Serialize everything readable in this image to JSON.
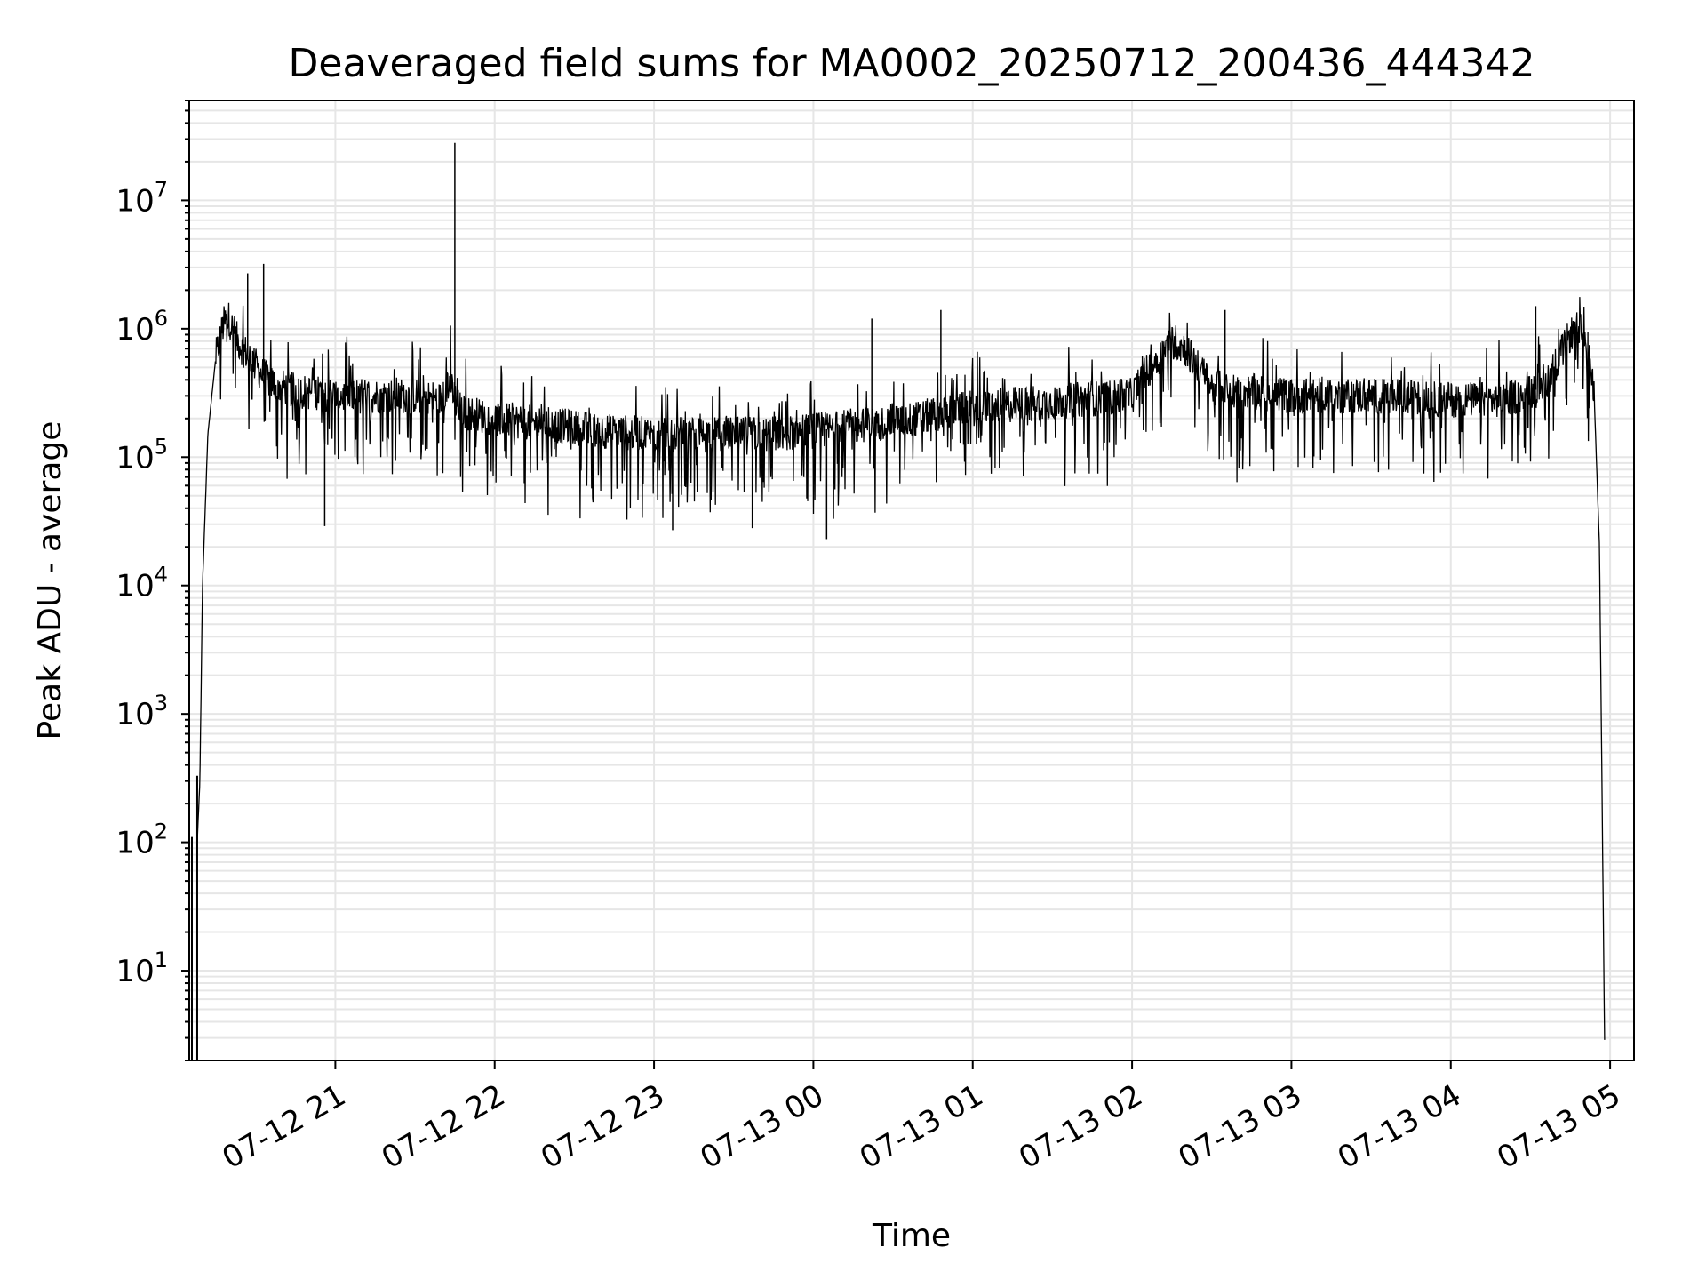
{
  "chart_data": {
    "type": "line",
    "title": "Deaveraged field sums for MA0002_20250712_200436_444342",
    "xlabel": "Time",
    "ylabel": "Peak ADU - average",
    "yscale": "log",
    "grid": true,
    "x_ticks": [
      "07-12 21",
      "07-12 22",
      "07-12 23",
      "07-13 00",
      "07-13 01",
      "07-13 02",
      "07-13 03",
      "07-13 04",
      "07-13 05"
    ],
    "y_ticks": [
      {
        "value": 10,
        "base": "10",
        "exp": "1"
      },
      {
        "value": 100,
        "base": "10",
        "exp": "2"
      },
      {
        "value": 1000,
        "base": "10",
        "exp": "3"
      },
      {
        "value": 10000,
        "base": "10",
        "exp": "4"
      },
      {
        "value": 100000,
        "base": "10",
        "exp": "5"
      },
      {
        "value": 1000000,
        "base": "10",
        "exp": "6"
      },
      {
        "value": 10000000,
        "base": "10",
        "exp": "7"
      }
    ],
    "xlim": [
      "2025-07-12 20:05",
      "2025-07-13 05:09"
    ],
    "ylim": [
      2,
      60000000
    ],
    "line_color": "#000000",
    "series": [
      {
        "x": [
          "2025-07-12 20:08",
          "2025-07-12 20:09",
          "2025-07-12 20:10",
          "2025-07-12 20:12",
          "2025-07-12 20:15",
          "2025-07-12 20:18",
          "2025-07-12 20:20",
          "2025-07-12 20:22",
          "2025-07-12 20:25",
          "2025-07-12 20:28",
          "2025-07-12 20:32",
          "2025-07-12 20:36",
          "2025-07-12 20:40",
          "2025-07-12 20:45",
          "2025-07-12 20:50",
          "2025-07-12 20:55",
          "2025-07-12 21:00",
          "2025-07-12 21:10",
          "2025-07-12 21:20",
          "2025-07-12 21:30",
          "2025-07-12 21:40",
          "2025-07-12 21:43",
          "2025-07-12 21:46",
          "2025-07-12 21:50",
          "2025-07-12 22:00",
          "2025-07-12 22:20",
          "2025-07-12 22:40",
          "2025-07-12 23:00",
          "2025-07-12 23:20",
          "2025-07-12 23:40",
          "2025-07-13 00:00",
          "2025-07-13 00:20",
          "2025-07-13 00:40",
          "2025-07-13 00:50",
          "2025-07-13 01:00",
          "2025-07-13 01:20",
          "2025-07-13 01:40",
          "2025-07-13 02:00",
          "2025-07-13 02:05",
          "2025-07-13 02:15",
          "2025-07-13 02:20",
          "2025-07-13 02:30",
          "2025-07-13 03:00",
          "2025-07-13 03:30",
          "2025-07-13 04:00",
          "2025-07-13 04:20",
          "2025-07-13 04:35",
          "2025-07-13 04:40",
          "2025-07-13 04:45",
          "2025-07-13 04:48",
          "2025-07-13 04:51",
          "2025-07-13 04:54",
          "2025-07-13 04:56",
          "2025-07-13 04:58"
        ],
        "y": [
          100,
          300,
          10000,
          150000,
          600000,
          1100000,
          1200000,
          900000,
          700000,
          600000,
          450000,
          380000,
          350000,
          330000,
          320000,
          320000,
          300000,
          300000,
          300000,
          300000,
          280000,
          400000,
          250000,
          220000,
          200000,
          180000,
          160000,
          150000,
          150000,
          150000,
          160000,
          180000,
          200000,
          230000,
          240000,
          260000,
          280000,
          300000,
          450000,
          800000,
          700000,
          350000,
          300000,
          300000,
          280000,
          280000,
          350000,
          550000,
          900000,
          1000000,
          800000,
          300000,
          20000,
          2
        ]
      }
    ],
    "spikes": [
      {
        "x": "2025-07-12 21:45",
        "y": 28000000
      },
      {
        "x": "2025-07-12 20:33",
        "y": 3200000
      },
      {
        "x": "2025-07-12 20:27",
        "y": 2700000
      },
      {
        "x": "2025-07-13 00:22",
        "y": 1200000
      },
      {
        "x": "2025-07-13 00:48",
        "y": 1400000
      },
      {
        "x": "2025-07-13 02:35",
        "y": 1400000
      },
      {
        "x": "2025-07-13 04:32",
        "y": 1500000
      },
      {
        "x": "2025-07-12 20:56",
        "y": 29000
      },
      {
        "x": "2025-07-12 23:07",
        "y": 27000
      },
      {
        "x": "2025-07-12 23:37",
        "y": 28000
      },
      {
        "x": "2025-07-13 00:05",
        "y": 23000
      }
    ]
  }
}
